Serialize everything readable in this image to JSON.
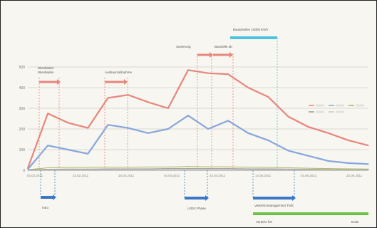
{
  "chart_data": {
    "type": "line",
    "title": "",
    "xlabel": "",
    "ylabel": "",
    "x": [
      "03.02.2011",
      "",
      "",
      "",
      "",
      "",
      "",
      "",
      "",
      "",
      "",
      "",
      "",
      "",
      "",
      "",
      "",
      ""
    ],
    "x_tick_labels": [
      "03.02.2011",
      "23.02.2011",
      "15.03.2011",
      "04.04.2011",
      "24.04.2011",
      "14.05.2011",
      "03.06.2011",
      "23.06.2011"
    ],
    "ylim": [
      0,
      600
    ],
    "y_ticks": [
      0,
      100,
      200,
      300,
      400,
      500
    ],
    "series": [
      {
        "name": "",
        "color": "#e8857c",
        "values": [
          10,
          275,
          230,
          205,
          350,
          365,
          330,
          300,
          485,
          470,
          465,
          400,
          355,
          260,
          210,
          180,
          145,
          120
        ]
      },
      {
        "name": "",
        "color": "#86a6dd",
        "values": [
          5,
          120,
          100,
          80,
          220,
          205,
          180,
          200,
          265,
          200,
          240,
          180,
          145,
          95,
          70,
          45,
          35,
          30
        ]
      },
      {
        "name": "",
        "color": "#b2b65f",
        "values": [
          3,
          12,
          14,
          14,
          15,
          15,
          16,
          16,
          18,
          17,
          17,
          15,
          14,
          12,
          10,
          8,
          7,
          6
        ]
      },
      {
        "name": "",
        "color": "#9a9a9a",
        "values": [
          2,
          5,
          6,
          6,
          7,
          7,
          7,
          8,
          8,
          8,
          8,
          7,
          7,
          6,
          5,
          4,
          3,
          3
        ]
      },
      {
        "name": "",
        "color": "#c9c9c9",
        "values": [
          1,
          3,
          3,
          3,
          4,
          4,
          4,
          4,
          4,
          4,
          4,
          4,
          3,
          3,
          3,
          2,
          2,
          2
        ]
      }
    ],
    "legend_position": "right",
    "grid": true,
    "annotations": [
      {
        "id": "wiesbaden",
        "text": "Wiesbaden\nWiesbaden",
        "color": "#e8857c"
      },
      {
        "id": "ausbau",
        "text": "Ausbaumaßnahme",
        "color": "#e8857c"
      },
      {
        "id": "redwindow",
        "text": "Sanierung",
        "color": "#e8857c"
      },
      {
        "id": "baustelle",
        "text": "Baustelle ab",
        "color": "#e8857c"
      },
      {
        "id": "topbar",
        "text": "Bauarbeiten 10000 km/h",
        "color": "#4fc3dd"
      },
      {
        "id": "intro",
        "text": "Intro",
        "color": "#3b78c8"
      },
      {
        "id": "phase",
        "text": "LVDG Phase",
        "color": "#3b78c8"
      },
      {
        "id": "longblue",
        "text": "Verkehrsmanagement TMS",
        "color": "#3b78c8"
      },
      {
        "id": "green",
        "text": "Verkehr frei",
        "color": "#6cc24a"
      },
      {
        "id": "end",
        "text": "Ende",
        "color": "#6cc24a"
      }
    ]
  }
}
